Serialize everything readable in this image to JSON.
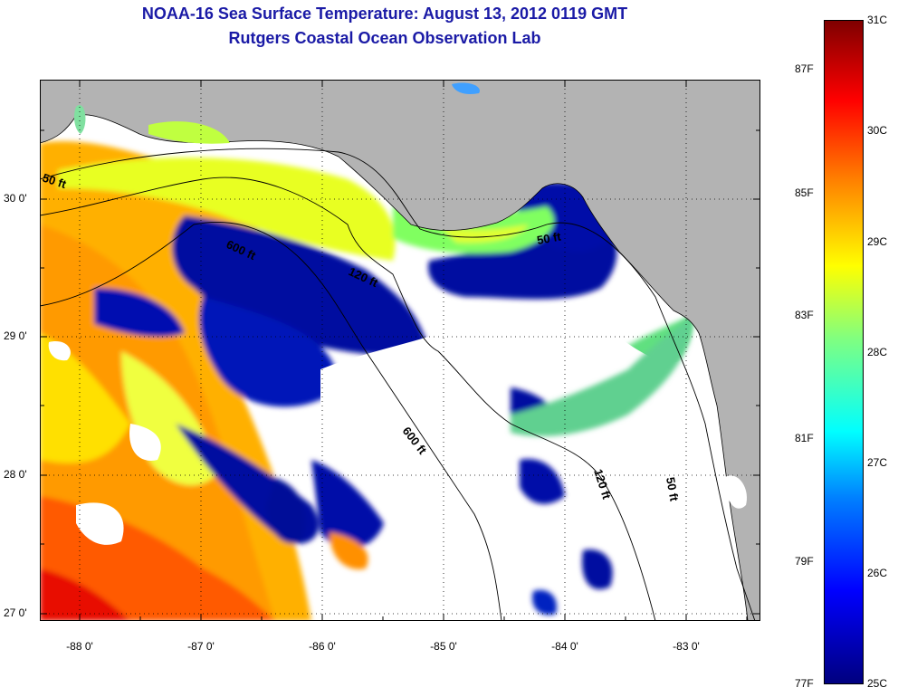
{
  "title": "NOAA-16 Sea Surface Temperature:  August 13, 2012 0119 GMT",
  "subtitle": "Rutgers Coastal Ocean Observation Lab",
  "map": {
    "lon_ticks": [
      "-88 0'",
      "-87 0'",
      "-86 0'",
      "-85 0'",
      "-84 0'",
      "-83 0'"
    ],
    "lat_ticks": [
      "30 0'",
      "29 0'",
      "28 0'",
      "27 0'"
    ],
    "contour_labels": [
      "50 ft",
      "600 ft",
      "120 ft",
      "50 ft",
      "600 ft",
      "120 ft",
      "50 ft"
    ],
    "colors": {
      "land": "#b3b3b3",
      "no_data": "#ffffff",
      "contour": "#000000"
    }
  },
  "colorbar": {
    "celsius": [
      "31C",
      "30C",
      "29C",
      "28C",
      "27C",
      "26C",
      "25C"
    ],
    "fahrenheit": [
      "87F",
      "85F",
      "83F",
      "81F",
      "79F",
      "77F"
    ],
    "colors": [
      "#00007f",
      "#0000ff",
      "#0080ff",
      "#00ffff",
      "#80ff80",
      "#ffff00",
      "#ff8000",
      "#ff0000",
      "#7f0000"
    ]
  }
}
